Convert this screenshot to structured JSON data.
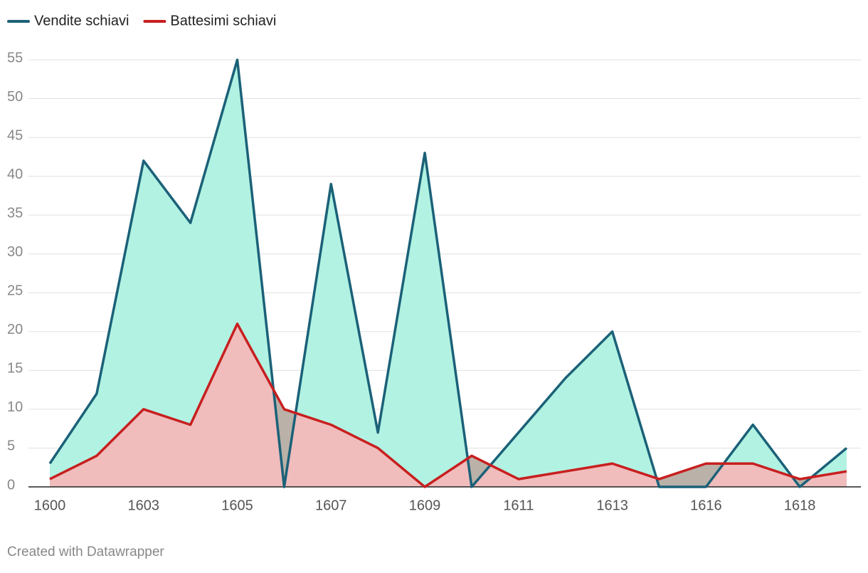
{
  "chart_data": {
    "type": "area",
    "categories": [
      "1600",
      null,
      "1603",
      null,
      "1605",
      null,
      "1607",
      null,
      "1609",
      null,
      "1611",
      null,
      "1613",
      null,
      "1616",
      null,
      "1618",
      null
    ],
    "series": [
      {
        "name": "Vendite schiavi",
        "color": "#1b6178",
        "fill": "#b2f2e2",
        "values": [
          3,
          12,
          42,
          34,
          55,
          0,
          39,
          7,
          43,
          0,
          7,
          14,
          20,
          0,
          0,
          8,
          0,
          5
        ]
      },
      {
        "name": "Battesimi schiavi",
        "color": "#c81f1f",
        "fill": "#f0bcbc",
        "values": [
          1,
          4,
          10,
          8,
          21,
          10,
          8,
          5,
          0,
          4,
          1,
          2,
          3,
          1,
          3,
          3,
          1,
          2
        ]
      }
    ],
    "overlap_color": "#bab1a8",
    "ylim": [
      0,
      55
    ],
    "yticks": [
      0,
      5,
      10,
      15,
      20,
      25,
      30,
      35,
      40,
      45,
      50,
      55
    ],
    "grid": true,
    "legend": "top-left",
    "footer": "Created with Datawrapper"
  }
}
